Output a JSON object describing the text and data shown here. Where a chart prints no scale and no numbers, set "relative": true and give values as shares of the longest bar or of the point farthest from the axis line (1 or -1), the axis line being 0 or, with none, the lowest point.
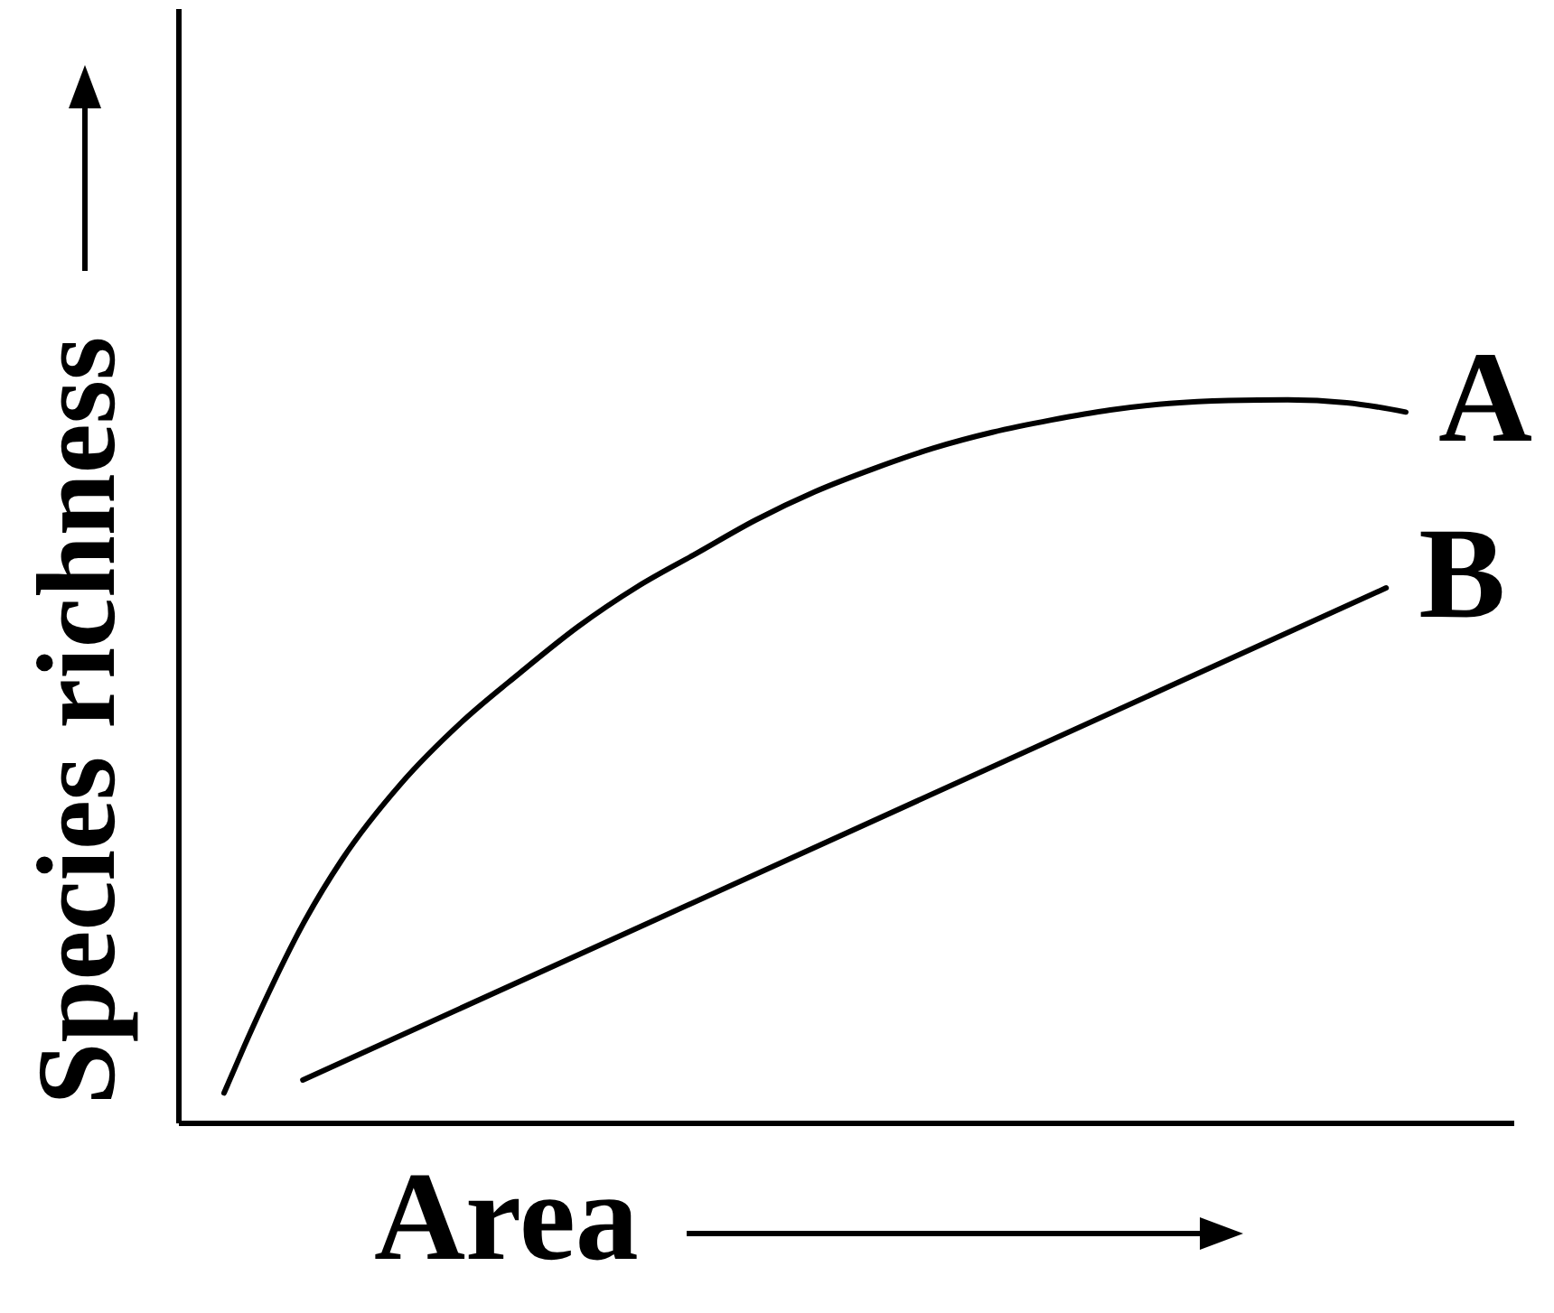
{
  "chart_data": {
    "type": "line",
    "relative": true,
    "xlabel": "Area",
    "ylabel": "Species richness",
    "categories": [
      null,
      null,
      null,
      null,
      null,
      null,
      null,
      null,
      null,
      null,
      null,
      null,
      null,
      null,
      null,
      null,
      null,
      null,
      null,
      null,
      null,
      null,
      null,
      null,
      null,
      null,
      null,
      null,
      null,
      null,
      null,
      null,
      null,
      null,
      null,
      null,
      null,
      null,
      null,
      null,
      null,
      null,
      null,
      null,
      null,
      null,
      null,
      null,
      null,
      null,
      null,
      null,
      null,
      null,
      null,
      null,
      null,
      null,
      null,
      null,
      null
    ],
    "series": [
      {
        "name": "A",
        "color": "#000000",
        "values": [
          0.042,
          0.105,
          0.165,
          null,
          0.275,
          null,
          0.365,
          null,
          null,
          0.47,
          null,
          null,
          0.553,
          null,
          null,
          0.622,
          null,
          null,
          0.687,
          null,
          null,
          0.742,
          null,
          null,
          0.788,
          null,
          null,
          0.834,
          null,
          null,
          0.873,
          null,
          null,
          0.905,
          null,
          null,
          0.933,
          null,
          null,
          0.955,
          null,
          null,
          0.972,
          null,
          null,
          0.986,
          null,
          null,
          0.995,
          null,
          null,
          0.999,
          null,
          null,
          1.0,
          null,
          null,
          0.996,
          null,
          null,
          0.983
        ]
      },
      {
        "name": "B",
        "color": "#000000",
        "values": [
          null,
          null,
          null,
          null,
          0.06,
          null,
          null,
          null,
          null,
          null,
          null,
          null,
          null,
          null,
          null,
          null,
          null,
          null,
          null,
          null,
          null,
          null,
          null,
          null,
          null,
          null,
          null,
          null,
          null,
          null,
          null,
          null,
          null,
          null,
          null,
          null,
          null,
          null,
          null,
          null,
          null,
          null,
          null,
          null,
          null,
          null,
          null,
          null,
          null,
          null,
          null,
          null,
          null,
          null,
          null,
          null,
          null,
          null,
          null,
          0.74,
          null
        ]
      }
    ],
    "marker": "none",
    "line_style": "solid"
  }
}
